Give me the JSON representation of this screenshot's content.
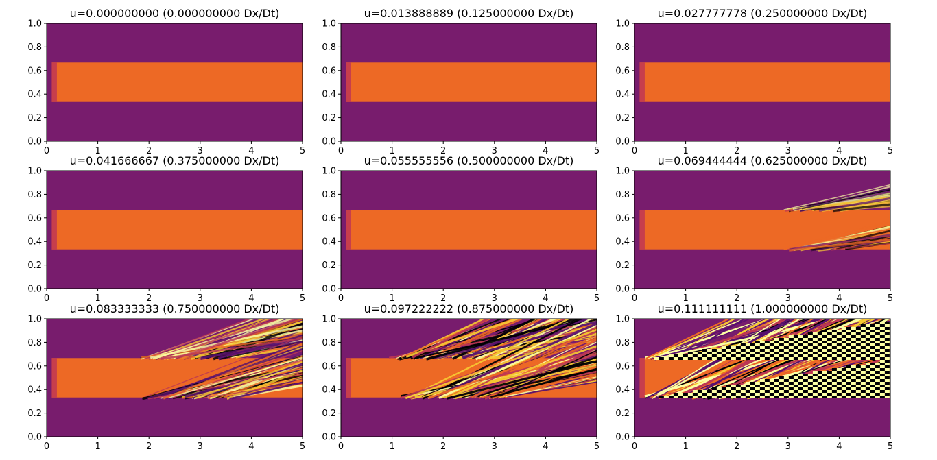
{
  "chart_data": [
    {
      "type": "heatmap",
      "title": "u=0.000000000 (0.000000000 Dx/Dt)",
      "instability": 0.0,
      "xlim": [
        0,
        5
      ],
      "ylim": [
        0,
        1
      ],
      "xticks": [
        0,
        1,
        2,
        3,
        4,
        5
      ],
      "yticks": [
        0.0,
        0.2,
        0.4,
        0.6,
        0.8,
        1.0
      ],
      "x_tick_labels": [
        "0",
        "1",
        "2",
        "3",
        "4",
        "5"
      ],
      "y_tick_labels": [
        "0.0",
        "0.2",
        "0.4",
        "0.6",
        "0.8",
        "1.0"
      ]
    },
    {
      "type": "heatmap",
      "title": "u=0.013888889 (0.125000000 Dx/Dt)",
      "instability": 0.0,
      "xlim": [
        0,
        5
      ],
      "ylim": [
        0,
        1
      ],
      "xticks": [
        0,
        1,
        2,
        3,
        4,
        5
      ],
      "yticks": [
        0.0,
        0.2,
        0.4,
        0.6,
        0.8,
        1.0
      ],
      "x_tick_labels": [
        "0",
        "1",
        "2",
        "3",
        "4",
        "5"
      ],
      "y_tick_labels": [
        "0.0",
        "0.2",
        "0.4",
        "0.6",
        "0.8",
        "1.0"
      ]
    },
    {
      "type": "heatmap",
      "title": "u=0.027777778 (0.250000000 Dx/Dt)",
      "instability": 0.0,
      "xlim": [
        0,
        5
      ],
      "ylim": [
        0,
        1
      ],
      "xticks": [
        0,
        1,
        2,
        3,
        4,
        5
      ],
      "yticks": [
        0.0,
        0.2,
        0.4,
        0.6,
        0.8,
        1.0
      ],
      "x_tick_labels": [
        "0",
        "1",
        "2",
        "3",
        "4",
        "5"
      ],
      "y_tick_labels": [
        "0.0",
        "0.2",
        "0.4",
        "0.6",
        "0.8",
        "1.0"
      ]
    },
    {
      "type": "heatmap",
      "title": "u=0.041666667 (0.375000000 Dx/Dt)",
      "instability": 0.0,
      "xlim": [
        0,
        5
      ],
      "ylim": [
        0,
        1
      ],
      "xticks": [
        0,
        1,
        2,
        3,
        4,
        5
      ],
      "yticks": [
        0.0,
        0.2,
        0.4,
        0.6,
        0.8,
        1.0
      ],
      "x_tick_labels": [
        "0",
        "1",
        "2",
        "3",
        "4",
        "5"
      ],
      "y_tick_labels": [
        "0.0",
        "0.2",
        "0.4",
        "0.6",
        "0.8",
        "1.0"
      ]
    },
    {
      "type": "heatmap",
      "title": "u=0.055555556 (0.500000000 Dx/Dt)",
      "instability": 0.0,
      "xlim": [
        0,
        5
      ],
      "ylim": [
        0,
        1
      ],
      "xticks": [
        0,
        1,
        2,
        3,
        4,
        5
      ],
      "yticks": [
        0.0,
        0.2,
        0.4,
        0.6,
        0.8,
        1.0
      ],
      "x_tick_labels": [
        "0",
        "1",
        "2",
        "3",
        "4",
        "5"
      ],
      "y_tick_labels": [
        "0.0",
        "0.2",
        "0.4",
        "0.6",
        "0.8",
        "1.0"
      ]
    },
    {
      "type": "heatmap",
      "title": "u=0.069444444 (0.625000000 Dx/Dt)",
      "instability": 0.35,
      "xlim": [
        0,
        5
      ],
      "ylim": [
        0,
        1
      ],
      "xticks": [
        0,
        1,
        2,
        3,
        4,
        5
      ],
      "yticks": [
        0.0,
        0.2,
        0.4,
        0.6,
        0.8,
        1.0
      ],
      "x_tick_labels": [
        "0",
        "1",
        "2",
        "3",
        "4",
        "5"
      ],
      "y_tick_labels": [
        "0.0",
        "0.2",
        "0.4",
        "0.6",
        "0.8",
        "1.0"
      ]
    },
    {
      "type": "heatmap",
      "title": "u=0.083333333 (0.750000000 Dx/Dt)",
      "instability": 0.6,
      "xlim": [
        0,
        5
      ],
      "ylim": [
        0,
        1
      ],
      "xticks": [
        0,
        1,
        2,
        3,
        4,
        5
      ],
      "yticks": [
        0.0,
        0.2,
        0.4,
        0.6,
        0.8,
        1.0
      ],
      "x_tick_labels": [
        "0",
        "1",
        "2",
        "3",
        "4",
        "5"
      ],
      "y_tick_labels": [
        "0.0",
        "0.2",
        "0.4",
        "0.6",
        "0.8",
        "1.0"
      ]
    },
    {
      "type": "heatmap",
      "title": "u=0.097222222 (0.875000000 Dx/Dt)",
      "instability": 0.82,
      "xlim": [
        0,
        5
      ],
      "ylim": [
        0,
        1
      ],
      "xticks": [
        0,
        1,
        2,
        3,
        4,
        5
      ],
      "yticks": [
        0.0,
        0.2,
        0.4,
        0.6,
        0.8,
        1.0
      ],
      "x_tick_labels": [
        "0",
        "1",
        "2",
        "3",
        "4",
        "5"
      ],
      "y_tick_labels": [
        "0.0",
        "0.2",
        "0.4",
        "0.6",
        "0.8",
        "1.0"
      ]
    },
    {
      "type": "heatmap",
      "title": "u=0.111111111 (1.000000000 Dx/Dt)",
      "instability": 1.0,
      "xlim": [
        0,
        5
      ],
      "ylim": [
        0,
        1
      ],
      "xticks": [
        0,
        1,
        2,
        3,
        4,
        5
      ],
      "yticks": [
        0.0,
        0.2,
        0.4,
        0.6,
        0.8,
        1.0
      ],
      "x_tick_labels": [
        "0",
        "1",
        "2",
        "3",
        "4",
        "5"
      ],
      "y_tick_labels": [
        "0.0",
        "0.2",
        "0.4",
        "0.6",
        "0.8",
        "1.0"
      ]
    }
  ],
  "colormap": {
    "name": "inferno",
    "background": "#781c6d",
    "band": "#ed6925",
    "inlet": "#c73e4c",
    "stripe_colors": [
      "#000004",
      "#fcffa4",
      "#f8c932",
      "#ed6925",
      "#bc3754",
      "#57106e"
    ]
  },
  "band": {
    "y_bottom": 0.333,
    "y_top": 0.667,
    "x_start": 0.1,
    "inlet_x_end": 0.2
  }
}
